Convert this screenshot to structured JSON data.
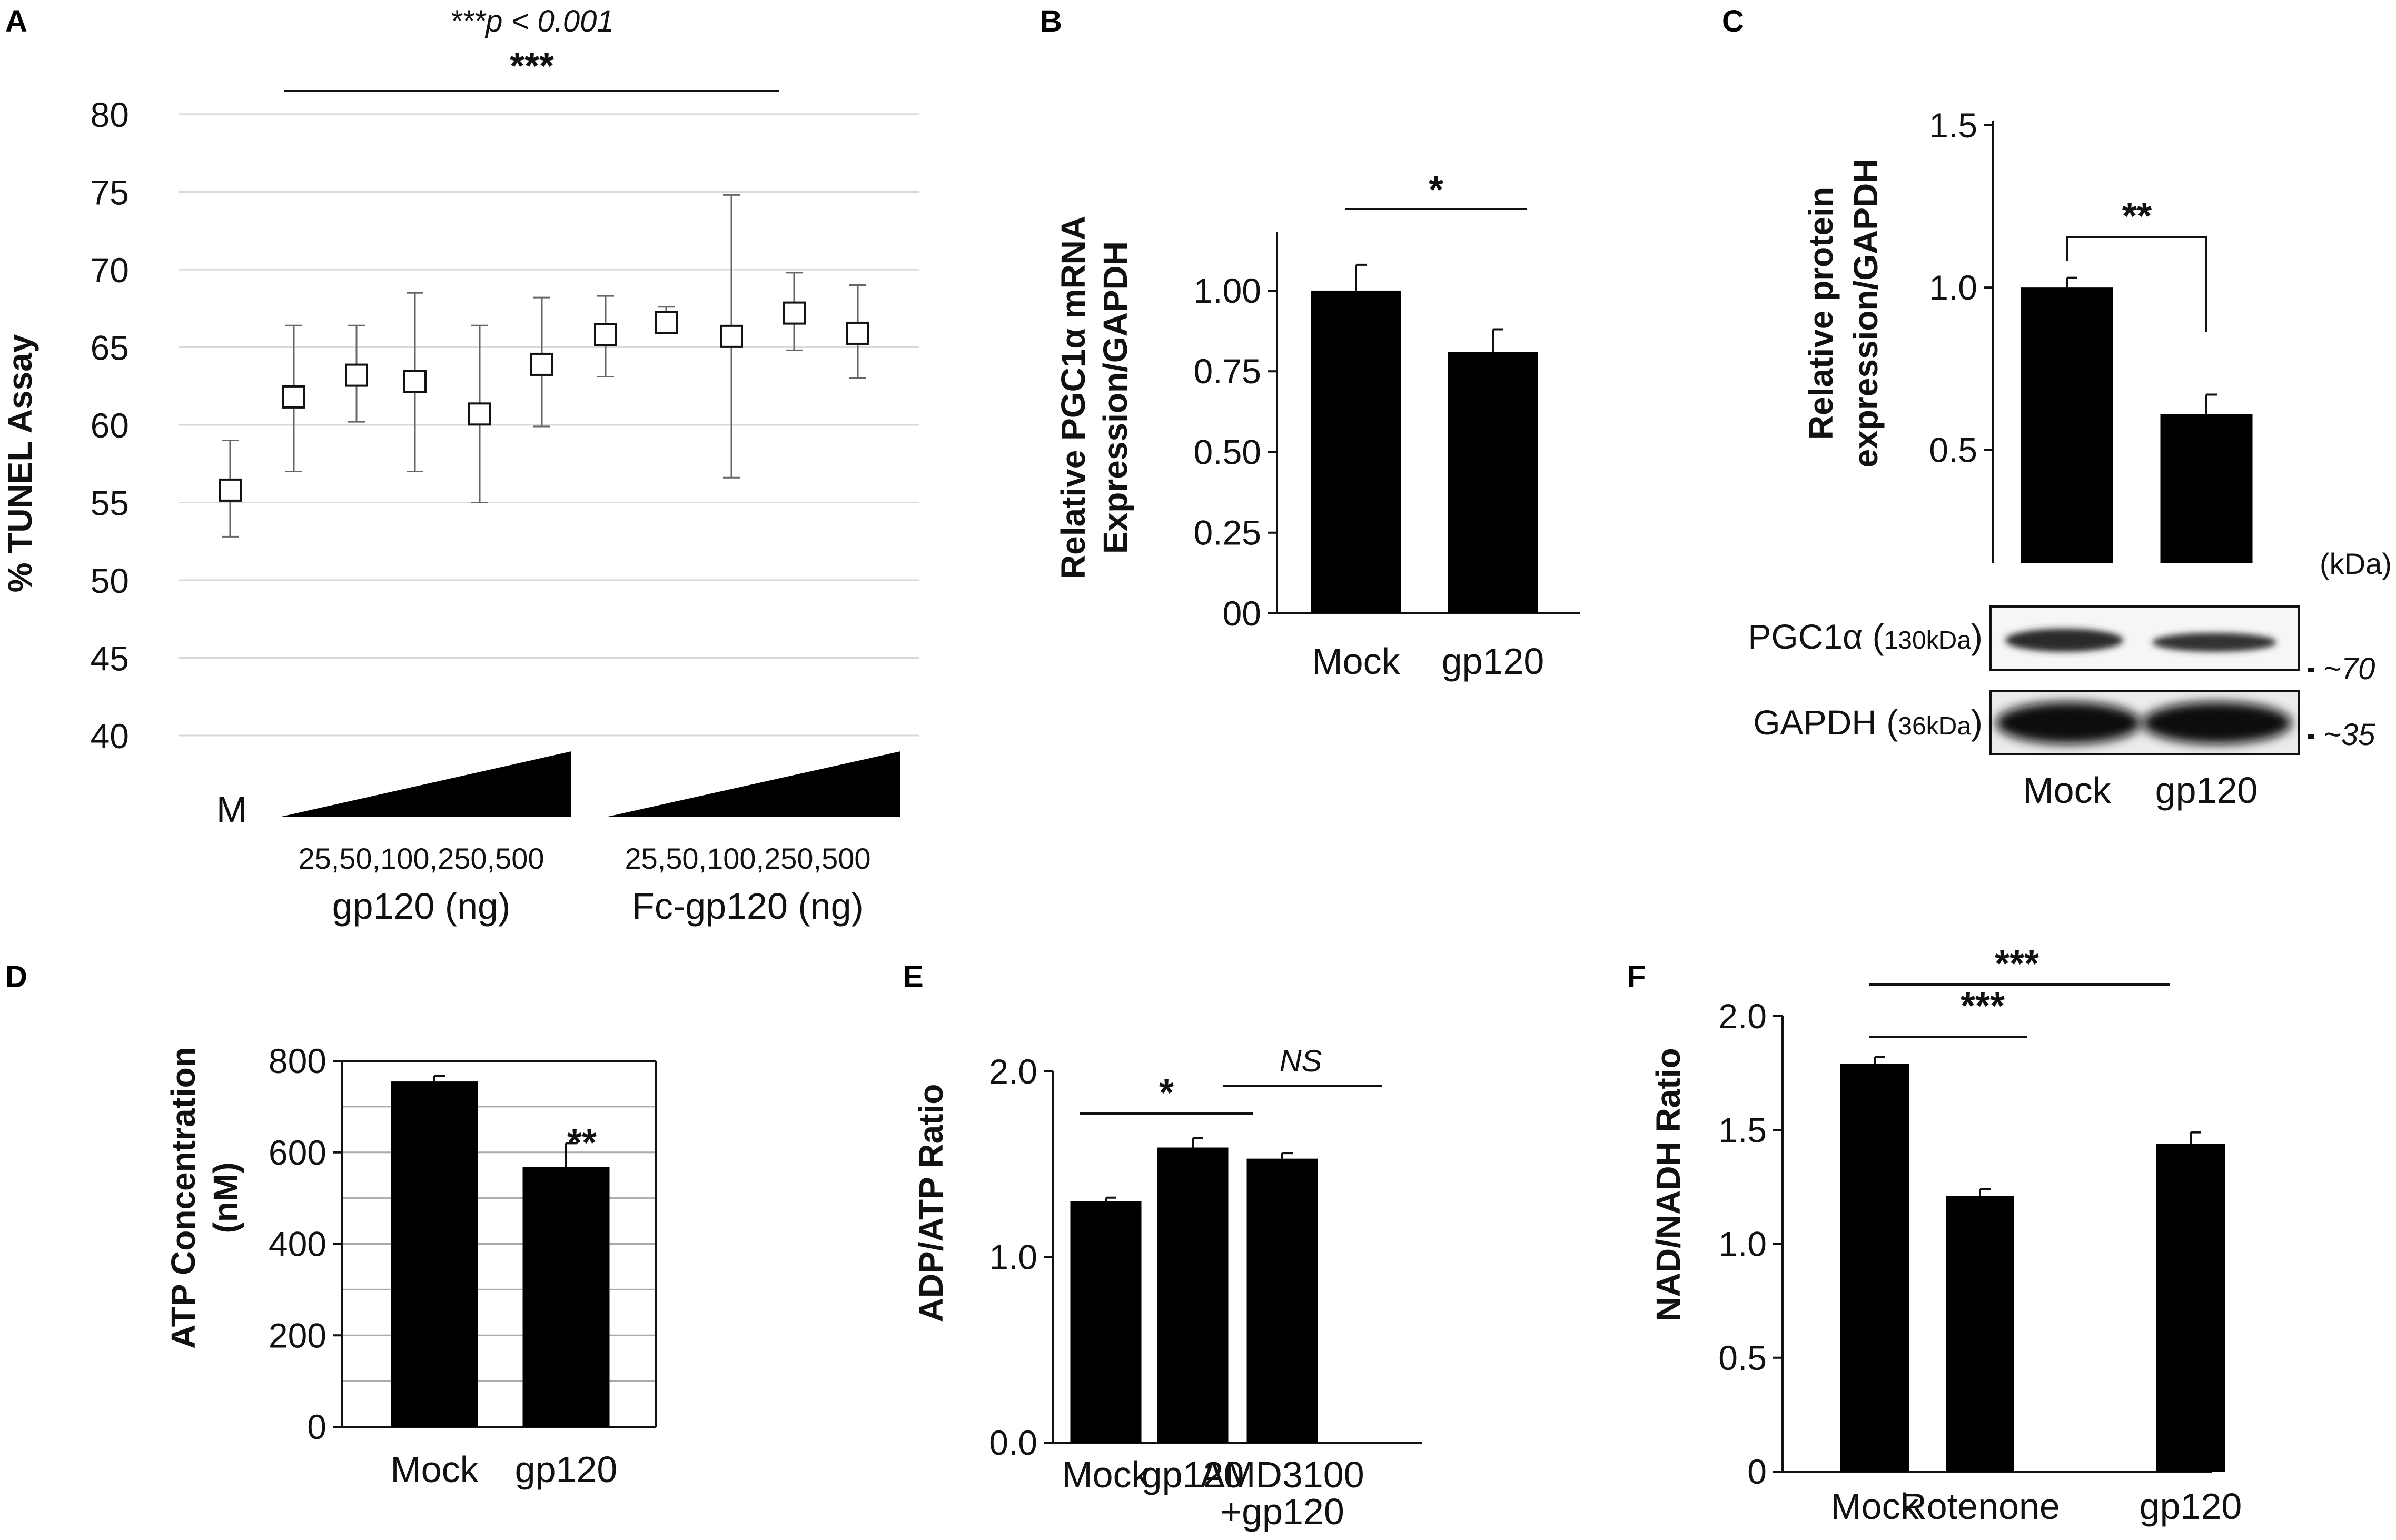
{
  "figure": {
    "panels": {
      "A": "A",
      "B": "B",
      "C": "C",
      "D": "D",
      "E": "E",
      "F": "F"
    }
  },
  "chart_data": [
    {
      "id": "A",
      "type": "scatter",
      "ylabel": "% TUNEL Assay",
      "ylim": [
        40,
        80
      ],
      "yticks": [
        40,
        45,
        50,
        55,
        60,
        65,
        70,
        75,
        80
      ],
      "grid": true,
      "points": [
        {
          "value": 55.8,
          "err_low": 52.8,
          "err_high": 59.0
        },
        {
          "value": 61.8,
          "err_low": 57.0,
          "err_high": 66.4
        },
        {
          "value": 63.2,
          "err_low": 60.2,
          "err_high": 66.4
        },
        {
          "value": 62.8,
          "err_low": 57.0,
          "err_high": 68.5
        },
        {
          "value": 60.7,
          "err_low": 55.0,
          "err_high": 66.4
        },
        {
          "value": 63.9,
          "err_low": 59.9,
          "err_high": 68.2
        },
        {
          "value": 65.8,
          "err_low": 63.1,
          "err_high": 68.3
        },
        {
          "value": 66.6,
          "err_low": 65.9,
          "err_high": 67.6
        },
        {
          "value": 65.7,
          "err_low": 56.6,
          "err_high": 74.8
        },
        {
          "value": 67.2,
          "err_low": 64.8,
          "err_high": 69.8
        },
        {
          "value": 65.9,
          "err_low": 63.0,
          "err_high": 69.0
        }
      ],
      "mock_label": "M",
      "dose_labels": [
        "25,50,100,250,500",
        "25,50,100,250,500"
      ],
      "group_labels": [
        "gp120 (ng)",
        "Fc-gp120 (ng)"
      ],
      "pvalue_text": "***p < 0.001",
      "sig_text": "***"
    },
    {
      "id": "B",
      "type": "bar",
      "categories": [
        "Mock",
        "gp120"
      ],
      "values": [
        1.0,
        0.81
      ],
      "errors": [
        0.08,
        0.07
      ],
      "ylim": [
        0,
        1.15
      ],
      "yticks": [
        0,
        0.25,
        0.5,
        0.75,
        1.0
      ],
      "ytick_labels": [
        "00",
        "0.25",
        "0.50",
        "0.75",
        "1.00"
      ],
      "ylabel_lines": [
        "Relative PGC1α mRNA",
        "Expression/GAPDH"
      ],
      "sig_text": "*"
    },
    {
      "id": "C",
      "type": "bar",
      "categories": [
        "Mock",
        "gp120"
      ],
      "values": [
        1.0,
        0.61
      ],
      "errors": [
        0.03,
        0.06
      ],
      "ylim": [
        0.15,
        1.5
      ],
      "yticks": [
        0.5,
        1.0,
        1.5
      ],
      "ytick_labels": [
        "0.5",
        "1.0",
        "1.5"
      ],
      "ylabel_lines": [
        "Relative protein",
        "expression/GAPDH"
      ],
      "sig_text": "**",
      "blot": {
        "unit_label": "(kDa)",
        "rows": [
          {
            "protein": "PGC1α",
            "size": "130kDa",
            "marker": "~70"
          },
          {
            "protein": "GAPDH",
            "size": "36kDa",
            "marker": "~35"
          }
        ]
      }
    },
    {
      "id": "D",
      "type": "bar",
      "categories": [
        "Mock",
        "gp120"
      ],
      "values": [
        755,
        568
      ],
      "errors": [
        12,
        52
      ],
      "ylim": [
        0,
        800
      ],
      "yticks": [
        0,
        200,
        400,
        600,
        800
      ],
      "grid": true,
      "ylabel_lines": [
        "ATP Concentration",
        "(nM)"
      ],
      "sig_text": "**"
    },
    {
      "id": "E",
      "type": "bar",
      "categories": [
        "Mock",
        "gp120",
        "AMD3100\n+gp120"
      ],
      "category_lines": [
        [
          "Mock"
        ],
        [
          "gp120"
        ],
        [
          "AMD3100",
          "+gp120"
        ]
      ],
      "values": [
        1.3,
        1.59,
        1.53
      ],
      "errors": [
        0.02,
        0.05,
        0.03
      ],
      "ylim": [
        0,
        2.0
      ],
      "yticks": [
        0,
        1.0,
        2.0
      ],
      "ytick_labels": [
        "0.0",
        "1.0",
        "2.0"
      ],
      "ylabel": "ADP/ATP Ratio",
      "sig_text": "*",
      "ns_text": "NS"
    },
    {
      "id": "F",
      "type": "bar",
      "categories": [
        "Mock",
        "Rotenone",
        "gp120"
      ],
      "values": [
        1.79,
        1.21,
        1.44
      ],
      "errors": [
        0.03,
        0.03,
        0.05
      ],
      "ylim": [
        0,
        2.0
      ],
      "yticks": [
        0,
        0.5,
        1.0,
        1.5,
        2.0
      ],
      "ytick_labels": [
        "0",
        "0.5",
        "1.0",
        "1.5",
        "2.0"
      ],
      "ylabel": "NAD/NADH Ratio",
      "sig_texts": [
        "***",
        "***"
      ]
    }
  ]
}
